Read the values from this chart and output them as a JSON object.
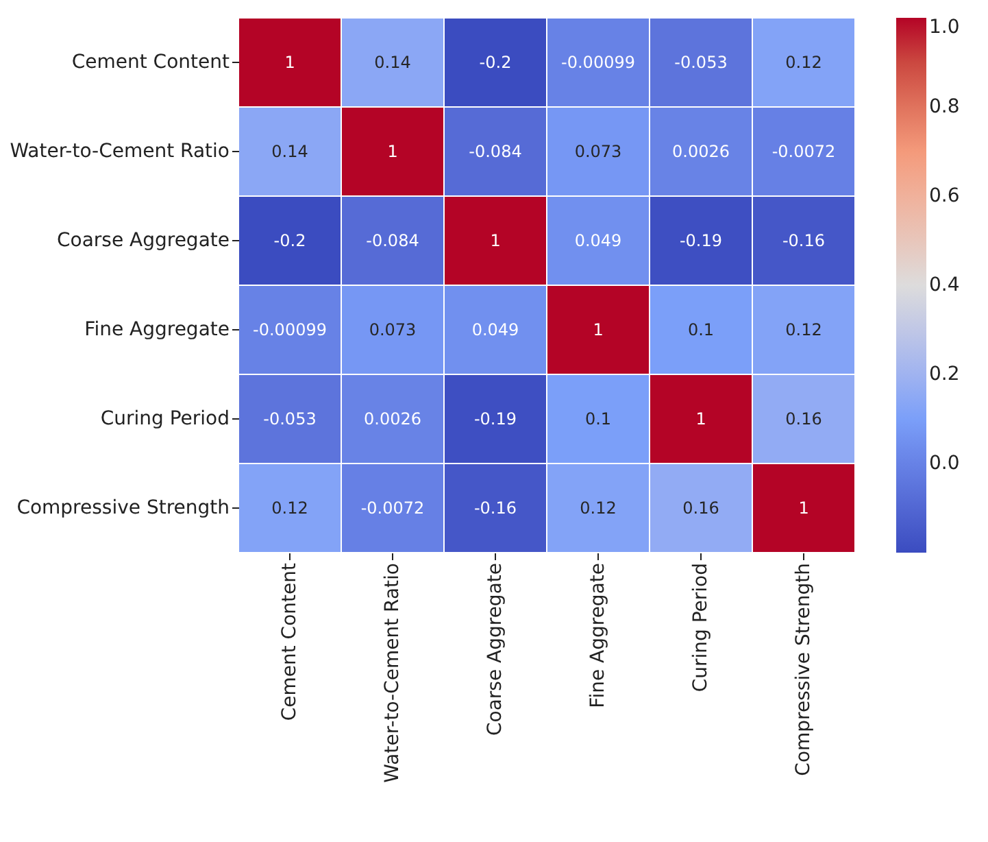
{
  "chart_data": {
    "type": "heatmap",
    "categories": [
      "Cement Content",
      "Water-to-Cement Ratio",
      "Coarse Aggregate",
      "Fine Aggregate",
      "Curing Period",
      "Compressive Strength"
    ],
    "y_categories": [
      "Cement Content",
      "Water-to-Cement Ratio",
      "Coarse Aggregate",
      "Fine Aggregate",
      "Curing Period",
      "Compressive Strength"
    ],
    "cells": [
      [
        1,
        0.14,
        -0.2,
        -0.00099,
        -0.053,
        0.12
      ],
      [
        0.14,
        1,
        -0.084,
        0.073,
        0.0026,
        -0.0072
      ],
      [
        -0.2,
        -0.084,
        1,
        0.049,
        -0.19,
        -0.16
      ],
      [
        -0.00099,
        0.073,
        0.049,
        1,
        0.1,
        0.12
      ],
      [
        -0.053,
        0.0026,
        -0.19,
        0.1,
        1,
        0.16
      ],
      [
        0.12,
        -0.0072,
        -0.16,
        0.12,
        0.16,
        1
      ]
    ],
    "data_labels": true,
    "clim": [
      -0.2,
      1
    ],
    "cticks": [
      {
        "value": 0,
        "label": "0.0"
      },
      {
        "value": 0.2,
        "label": "0.2"
      },
      {
        "value": 0.4,
        "label": "0.4"
      },
      {
        "value": 0.6,
        "label": "0.6"
      },
      {
        "value": 0.8,
        "label": "0.8"
      },
      {
        "value": 1,
        "label": "1.0"
      }
    ]
  }
}
